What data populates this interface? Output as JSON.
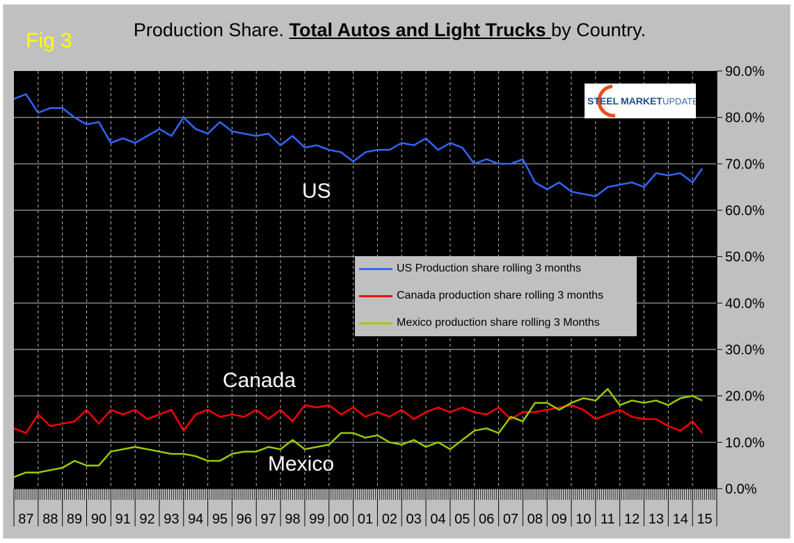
{
  "figure_label": "Fig 3",
  "title_prefix": "Production Share. ",
  "title_emphasis": "Total Autos and Light Trucks ",
  "title_suffix": "by Country.",
  "logo_text": "STEEL MARKET UPDATE",
  "colors": {
    "us": "#3366ff",
    "canada": "#ff0000",
    "mexico": "#99cc00",
    "plot_bg": "#000000",
    "frame_bg": "#c0c0c0",
    "figure_label": "#ffff00"
  },
  "chart_data": {
    "type": "line",
    "xlabel": "",
    "ylabel": "",
    "ylim": [
      0,
      90
    ],
    "xlim": [
      1987,
      2016
    ],
    "y_ticks": [
      "0.0%",
      "10.0%",
      "20.0%",
      "30.0%",
      "40.0%",
      "50.0%",
      "60.0%",
      "70.0%",
      "80.0%",
      "90.0%"
    ],
    "x_ticks": [
      "87",
      "88",
      "89",
      "90",
      "91",
      "92",
      "93",
      "94",
      "95",
      "96",
      "97",
      "98",
      "99",
      "00",
      "01",
      "02",
      "03",
      "04",
      "05",
      "06",
      "07",
      "08",
      "09",
      "10",
      "11",
      "12",
      "13",
      "14",
      "15"
    ],
    "grid": true,
    "legend_placement": "center-right",
    "annotations": [
      "US",
      "Canada",
      "Mexico"
    ],
    "x": [
      1987.0,
      1987.5,
      1988.0,
      1988.5,
      1989.0,
      1989.5,
      1990.0,
      1990.5,
      1991.0,
      1991.5,
      1992.0,
      1992.5,
      1993.0,
      1993.5,
      1994.0,
      1994.5,
      1995.0,
      1995.5,
      1996.0,
      1996.5,
      1997.0,
      1997.5,
      1998.0,
      1998.5,
      1999.0,
      1999.5,
      2000.0,
      2000.5,
      2001.0,
      2001.5,
      2002.0,
      2002.5,
      2003.0,
      2003.5,
      2004.0,
      2004.5,
      2005.0,
      2005.5,
      2006.0,
      2006.5,
      2007.0,
      2007.5,
      2008.0,
      2008.5,
      2009.0,
      2009.5,
      2010.0,
      2010.5,
      2011.0,
      2011.5,
      2012.0,
      2012.5,
      2013.0,
      2013.5,
      2014.0,
      2014.5,
      2015.0,
      2015.4
    ],
    "series": [
      {
        "name": "US Production share rolling 3 months",
        "key": "us",
        "values": [
          84,
          85,
          81,
          82,
          82,
          80,
          78.5,
          79,
          74.5,
          75.5,
          74.5,
          76,
          77.5,
          76,
          80,
          77.5,
          76.5,
          79,
          77,
          76.5,
          76,
          76.5,
          74,
          76,
          73.5,
          74,
          73,
          72.5,
          70.5,
          72.5,
          73,
          73,
          74.5,
          74,
          75.5,
          73,
          74.5,
          73.5,
          70,
          71,
          70,
          70,
          71,
          66,
          64.5,
          66,
          64,
          63.5,
          63,
          65,
          65.5,
          66,
          65,
          68,
          67.5,
          68,
          66,
          69
        ]
      },
      {
        "name": "Canada production share rolling 3 months",
        "key": "canada",
        "values": [
          13,
          12,
          16,
          13.5,
          14,
          14.5,
          17,
          14,
          17,
          16,
          17,
          15,
          16,
          17,
          12.5,
          16,
          17,
          15.5,
          16,
          15.5,
          17,
          15,
          17,
          14.5,
          18,
          17.5,
          18,
          16,
          17.5,
          15.5,
          16.5,
          15.5,
          17,
          15,
          16.5,
          17.5,
          16.5,
          17.5,
          16.5,
          16,
          17.5,
          15,
          16.5,
          16.5,
          17,
          17.5,
          18,
          17,
          15,
          16,
          17,
          15.5,
          15,
          15,
          13.5,
          12.5,
          14.5,
          12
        ]
      },
      {
        "name": "Mexico production share rolling 3 Months",
        "key": "mexico",
        "values": [
          2.5,
          3.5,
          3.5,
          4,
          4.5,
          6,
          5,
          5,
          8,
          8.5,
          9,
          8.5,
          8,
          7.5,
          7.5,
          7,
          6,
          6,
          7.5,
          8,
          8,
          9,
          8.5,
          10.5,
          8.5,
          9,
          9.5,
          12,
          12,
          11,
          11.5,
          10,
          9.5,
          10.5,
          9,
          10,
          8.5,
          10.5,
          12.5,
          13,
          12,
          15.5,
          14.5,
          18.5,
          18.5,
          17,
          18.5,
          19.5,
          19,
          21.5,
          18,
          19,
          18.5,
          19,
          18,
          19.5,
          20,
          19
        ]
      }
    ]
  }
}
